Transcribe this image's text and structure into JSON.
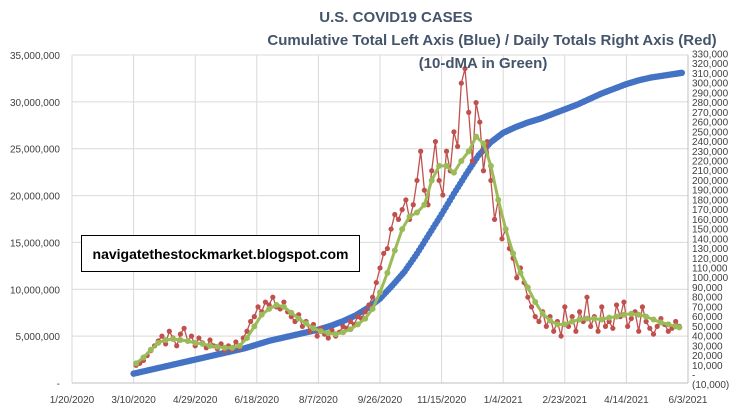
{
  "chart_data": {
    "type": "line",
    "title": "U.S. COVID19 CASES",
    "subtitle": "Cumulative Total Left Axis (Blue) / Daily Totals Right Axis (Red)",
    "subtitle2": "(10-dMA in Green)",
    "watermark": "navigatethestockmarket.blogspot.com",
    "colors": {
      "cumulative": "#4472c4",
      "daily": "#c0504d",
      "ma": "#9bbb59",
      "grid": "#d9d9d9"
    },
    "x_tick_labels": [
      "1/20/2020",
      "3/10/2020",
      "4/29/2020",
      "6/18/2020",
      "8/7/2020",
      "9/26/2020",
      "11/15/2020",
      "1/4/2021",
      "2/23/2021",
      "4/14/2021",
      "6/3/2021"
    ],
    "xlim_days": [
      0,
      500
    ],
    "y_left": {
      "ylim": [
        0,
        35000000
      ],
      "tick_labels": [
        "-",
        "5,000,000",
        "10,000,000",
        "15,000,000",
        "20,000,000",
        "25,000,000",
        "30,000,000",
        "35,000,000"
      ],
      "tick_values": [
        0,
        5000000,
        10000000,
        15000000,
        20000000,
        25000000,
        30000000,
        35000000
      ]
    },
    "y_right": {
      "ylim": [
        -10000,
        330000
      ],
      "tick_labels": [
        "(10,000)",
        "-",
        "10,000",
        "20,000",
        "30,000",
        "40,000",
        "50,000",
        "60,000",
        "70,000",
        "80,000",
        "90,000",
        "100,000",
        "110,000",
        "120,000",
        "130,000",
        "140,000",
        "150,000",
        "160,000",
        "170,000",
        "180,000",
        "190,000",
        "200,000",
        "210,000",
        "220,000",
        "230,000",
        "240,000",
        "250,000",
        "260,000",
        "270,000",
        "280,000",
        "290,000",
        "300,000",
        "310,000",
        "320,000",
        "330,000"
      ],
      "tick_values": [
        -10000,
        0,
        10000,
        20000,
        30000,
        40000,
        50000,
        60000,
        70000,
        80000,
        90000,
        100000,
        110000,
        120000,
        130000,
        140000,
        150000,
        160000,
        170000,
        180000,
        190000,
        200000,
        210000,
        220000,
        230000,
        240000,
        250000,
        260000,
        270000,
        280000,
        290000,
        300000,
        310000,
        320000,
        330000
      ]
    },
    "series": [
      {
        "name": "Cumulative Total",
        "axis": "left",
        "color": "#4472c4",
        "x": [
          50,
          60,
          70,
          80,
          90,
          100,
          110,
          120,
          130,
          140,
          150,
          160,
          170,
          180,
          190,
          200,
          210,
          220,
          230,
          240,
          250,
          260,
          270,
          280,
          290,
          300,
          310,
          320,
          330,
          340,
          350,
          360,
          370,
          380,
          390,
          400,
          410,
          420,
          430,
          440,
          450,
          460,
          470,
          480,
          490,
          495
        ],
        "values": [
          1000000,
          1300000,
          1600000,
          1900000,
          2200000,
          2500000,
          2800000,
          3100000,
          3400000,
          3700000,
          4100000,
          4500000,
          4800000,
          5100000,
          5400000,
          5700000,
          6100000,
          6600000,
          7200000,
          8000000,
          9000000,
          10400000,
          11900000,
          13800000,
          15900000,
          18000000,
          20200000,
          22300000,
          24300000,
          25700000,
          26700000,
          27300000,
          27800000,
          28200000,
          28700000,
          29200000,
          29700000,
          30300000,
          30900000,
          31400000,
          31900000,
          32300000,
          32600000,
          32800000,
          33000000,
          33100000
        ]
      },
      {
        "name": "Daily Totals",
        "axis": "right",
        "color": "#c0504d",
        "x": [
          52,
          55,
          58,
          61,
          64,
          67,
          70,
          73,
          76,
          79,
          82,
          85,
          88,
          91,
          94,
          97,
          100,
          103,
          106,
          109,
          112,
          115,
          118,
          121,
          124,
          127,
          130,
          133,
          136,
          139,
          142,
          145,
          148,
          151,
          154,
          157,
          160,
          163,
          166,
          169,
          172,
          175,
          178,
          181,
          184,
          187,
          190,
          193,
          196,
          199,
          202,
          205,
          208,
          211,
          214,
          217,
          220,
          223,
          226,
          229,
          232,
          235,
          238,
          241,
          244,
          247,
          250,
          253,
          256,
          259,
          262,
          265,
          268,
          271,
          274,
          277,
          280,
          283,
          286,
          289,
          292,
          295,
          298,
          301,
          304,
          307,
          310,
          313,
          316,
          319,
          322,
          325,
          328,
          331,
          334,
          337,
          340,
          343,
          346,
          349,
          352,
          355,
          358,
          361,
          364,
          367,
          370,
          373,
          376,
          379,
          382,
          385,
          388,
          391,
          394,
          397,
          400,
          403,
          406,
          409,
          412,
          415,
          418,
          421,
          424,
          427,
          430,
          433,
          436,
          439,
          442,
          445,
          448,
          451,
          454,
          457,
          460,
          463,
          466,
          469,
          472,
          475,
          478,
          481,
          484,
          487,
          490,
          493
        ],
        "values": [
          10000,
          12000,
          15000,
          20000,
          25000,
          30000,
          35000,
          40000,
          32000,
          45000,
          38000,
          30000,
          42000,
          48000,
          35000,
          40000,
          30000,
          38000,
          33000,
          28000,
          36000,
          30000,
          27000,
          32000,
          25000,
          30000,
          26000,
          34000,
          28000,
          38000,
          45000,
          55000,
          60000,
          70000,
          65000,
          75000,
          72000,
          80000,
          70000,
          68000,
          75000,
          65000,
          60000,
          55000,
          62000,
          50000,
          55000,
          45000,
          52000,
          40000,
          48000,
          42000,
          38000,
          46000,
          40000,
          44000,
          50000,
          48000,
          55000,
          52000,
          60000,
          58000,
          65000,
          72000,
          80000,
          95000,
          110000,
          125000,
          130000,
          150000,
          165000,
          160000,
          170000,
          180000,
          160000,
          175000,
          200000,
          230000,
          190000,
          175000,
          210000,
          240000,
          200000,
          185000,
          230000,
          210000,
          250000,
          235000,
          300000,
          315000,
          270000,
          220000,
          280000,
          260000,
          210000,
          240000,
          200000,
          160000,
          180000,
          140000,
          150000,
          130000,
          120000,
          100000,
          110000,
          95000,
          80000,
          70000,
          60000,
          55000,
          65000,
          50000,
          60000,
          45000,
          55000,
          40000,
          70000,
          50000,
          60000,
          45000,
          65000,
          55000,
          80000,
          50000,
          60000,
          45000,
          70000,
          50000,
          55000,
          48000,
          72000,
          60000,
          75000,
          50000,
          58000,
          65000,
          45000,
          70000,
          55000,
          48000,
          42000,
          50000,
          58000,
          52000,
          45000,
          48000,
          55000,
          50000
        ],
        "note": "approximate daily values read from red markers"
      },
      {
        "name": "10-dMA",
        "axis": "right",
        "color": "#9bbb59",
        "x": [
          52,
          58,
          64,
          70,
          76,
          82,
          88,
          94,
          100,
          106,
          112,
          118,
          124,
          130,
          136,
          142,
          148,
          154,
          160,
          166,
          172,
          178,
          184,
          190,
          196,
          202,
          208,
          214,
          220,
          226,
          232,
          238,
          244,
          250,
          256,
          262,
          268,
          274,
          280,
          286,
          292,
          298,
          304,
          310,
          316,
          322,
          328,
          334,
          340,
          346,
          352,
          358,
          364,
          370,
          376,
          382,
          388,
          394,
          400,
          406,
          412,
          418,
          424,
          430,
          436,
          442,
          448,
          454,
          460,
          466,
          472,
          478,
          484,
          490,
          493
        ],
        "values": [
          12000,
          18000,
          26000,
          33000,
          36000,
          37000,
          36000,
          35000,
          33000,
          32000,
          30000,
          29000,
          28000,
          28000,
          30000,
          38000,
          50000,
          62000,
          68000,
          72000,
          70000,
          64000,
          58000,
          53000,
          48000,
          45000,
          43000,
          42000,
          44000,
          47000,
          52000,
          58000,
          68000,
          85000,
          105000,
          128000,
          150000,
          163000,
          167000,
          175000,
          200000,
          215000,
          215000,
          208000,
          220000,
          230000,
          245000,
          238000,
          215000,
          180000,
          150000,
          125000,
          105000,
          90000,
          75000,
          63000,
          56000,
          52000,
          52000,
          55000,
          57000,
          58000,
          58000,
          57000,
          59000,
          60000,
          62000,
          63000,
          62000,
          60000,
          57000,
          54000,
          52000,
          50000,
          49000
        ]
      }
    ]
  }
}
